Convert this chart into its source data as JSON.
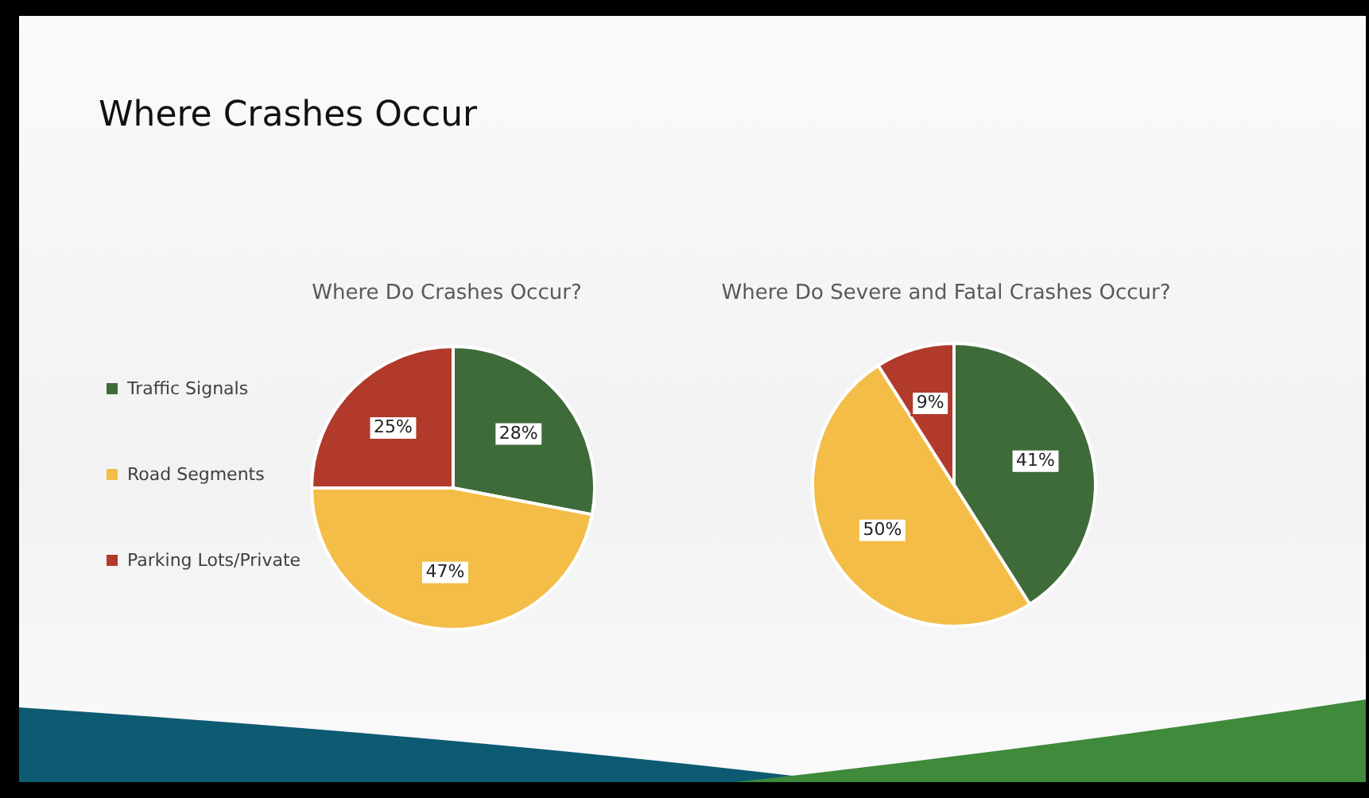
{
  "chart_data": [
    {
      "type": "pie",
      "title": "Where Do Crashes Occur?",
      "annotations": [
        "Where Crashes Occur"
      ],
      "categories": [
        "Traffic Signals",
        "Road Segments",
        "Parking Lots/Private"
      ],
      "values": [
        28,
        47,
        25
      ],
      "colors": [
        "#3e6b39",
        "#f4bd47",
        "#b13a2b"
      ],
      "value_labels": [
        "28%",
        "47%",
        "25%"
      ],
      "legend": "left"
    },
    {
      "type": "pie",
      "title": "Where Do Severe and Fatal Crashes Occur?",
      "categories": [
        null,
        null,
        null
      ],
      "values": [
        41,
        50,
        9
      ],
      "colors": [
        "#3e6b39",
        "#f4bd47",
        "#b13a2b"
      ],
      "value_labels": [
        "41%",
        "50%",
        "9%"
      ]
    }
  ]
}
